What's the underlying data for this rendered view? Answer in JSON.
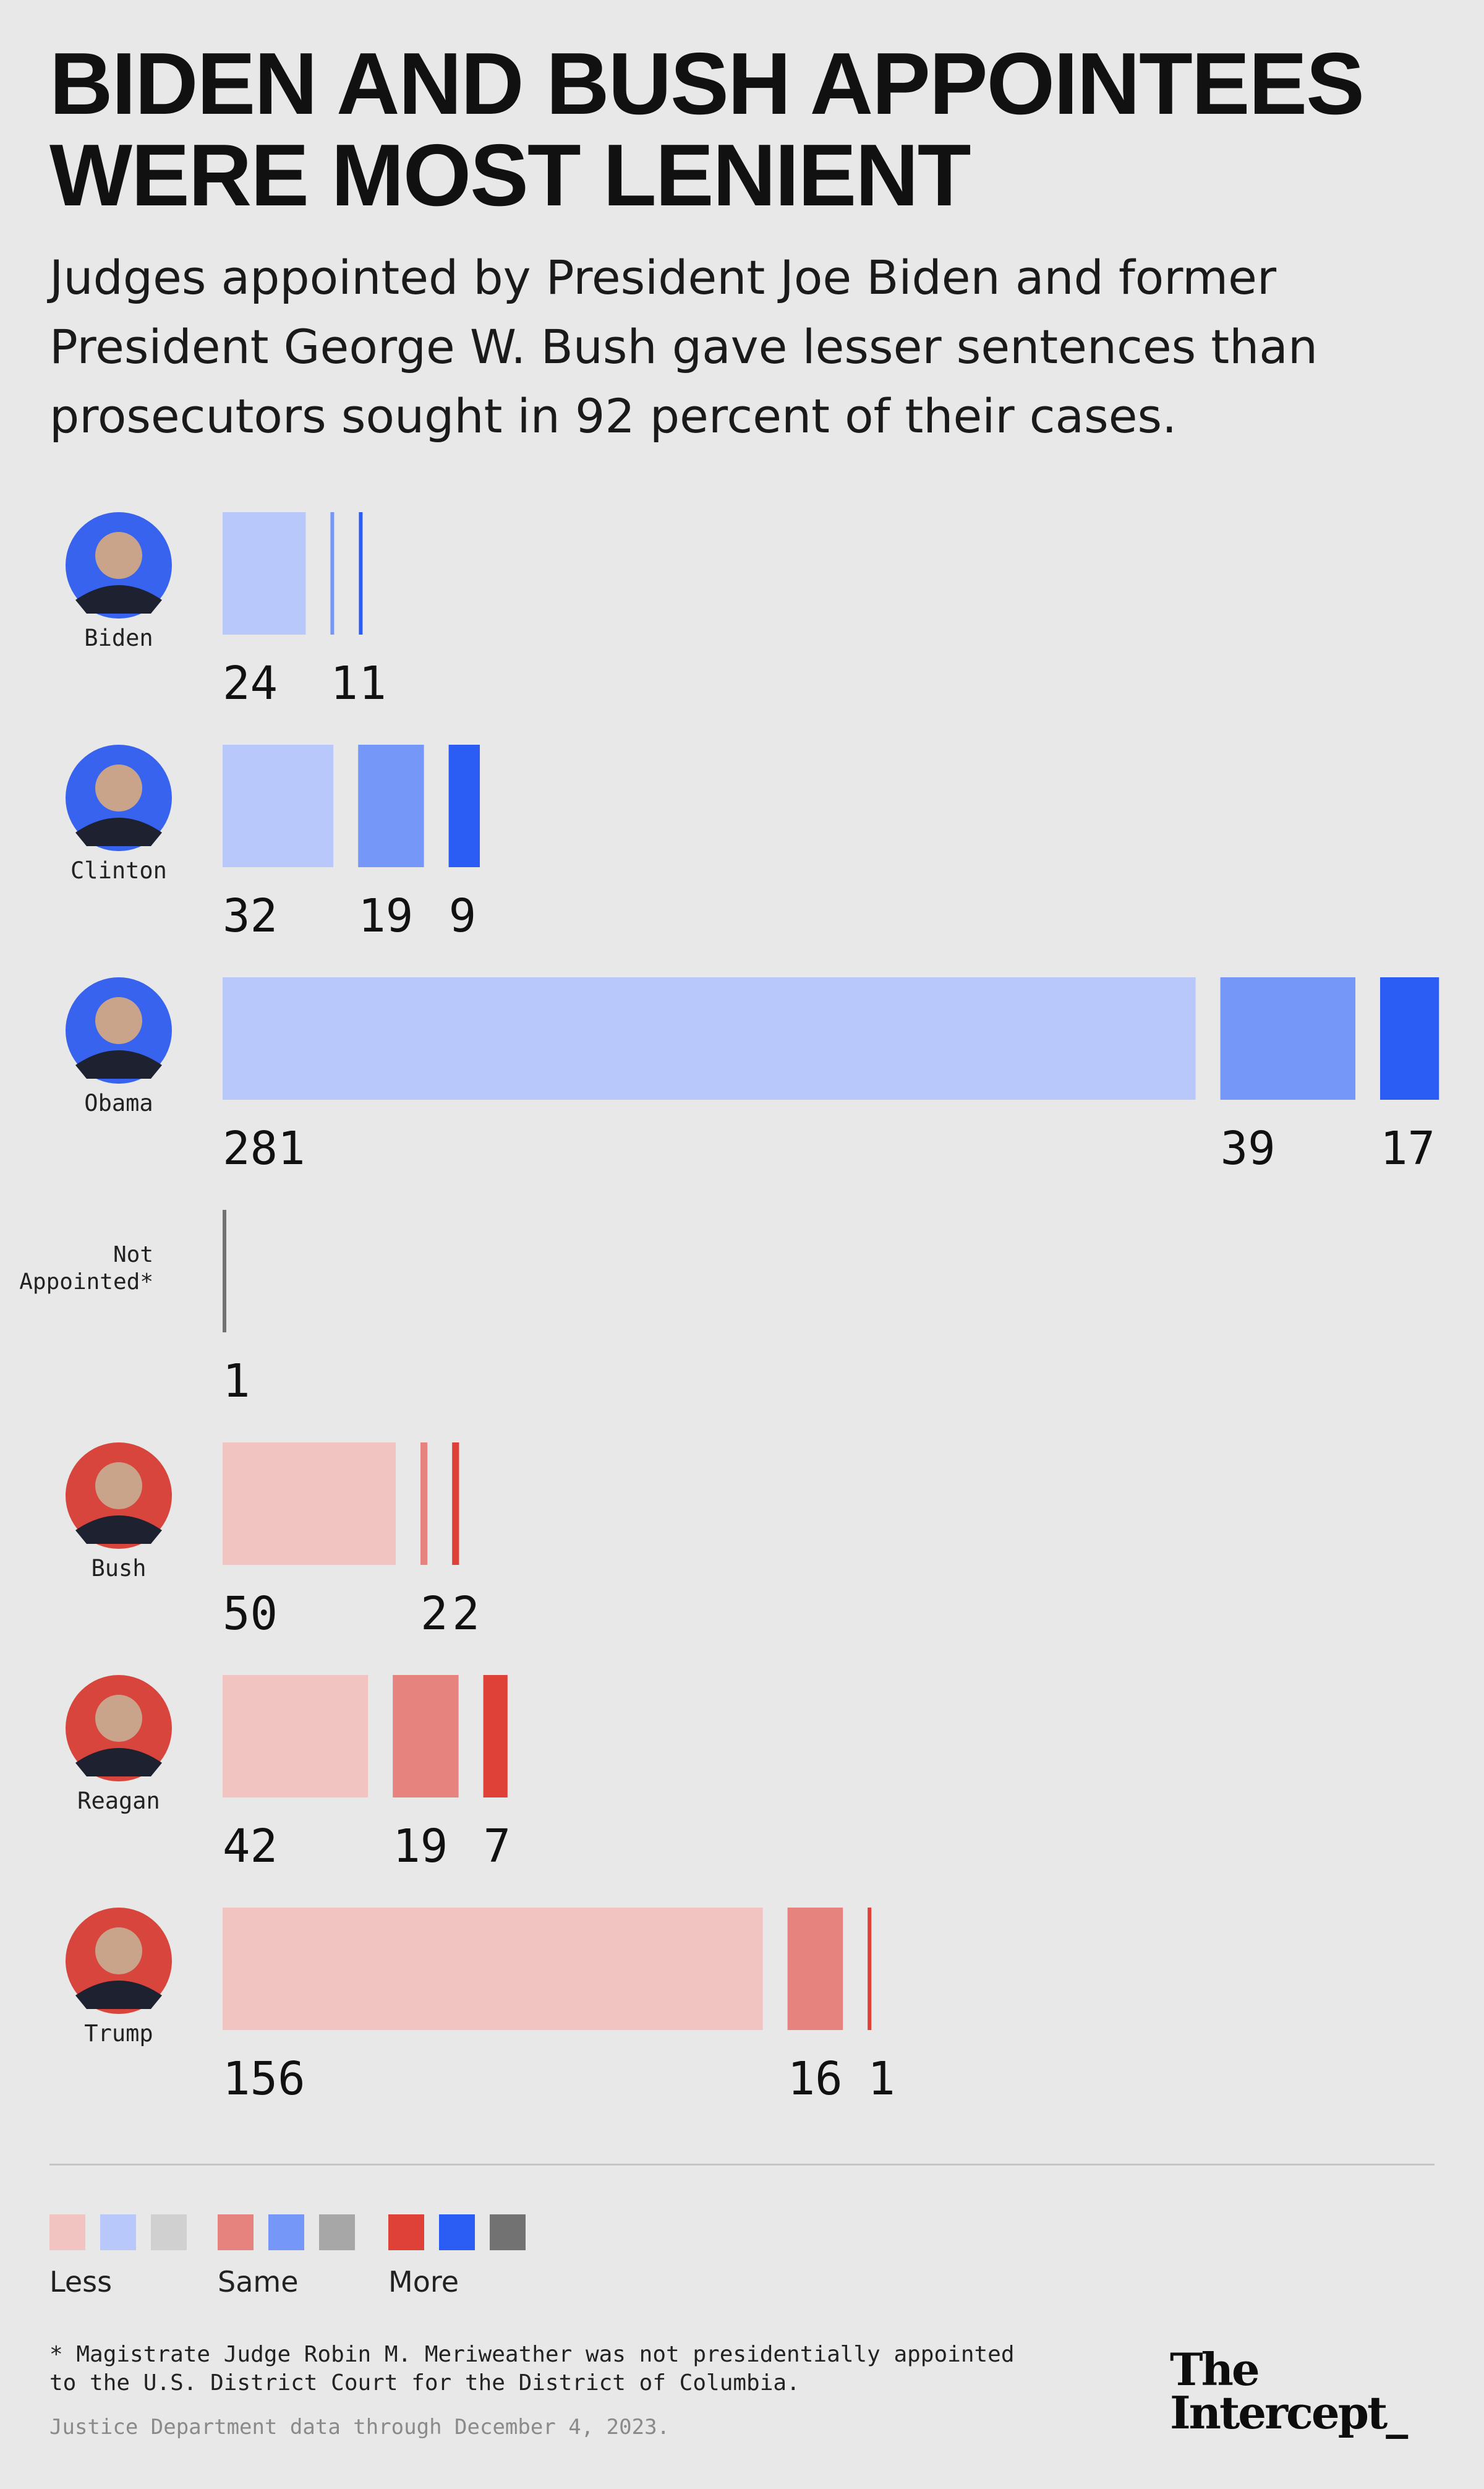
{
  "title": "BIDEN AND BUSH APPOINTEES\nWERE MOST LENIENT",
  "subtitle": "Judges appointed by President Joe Biden and former President George W. Bush gave lesser sentences than prosecutors sought in 92 percent of their cases.",
  "chart_data": {
    "type": "bar",
    "stacking": "grouped-horizontal",
    "categories_order": [
      "Less",
      "Same",
      "More"
    ],
    "rows": [
      {
        "name": "Biden",
        "party": "democrat",
        "values": [
          24,
          1,
          1
        ]
      },
      {
        "name": "Clinton",
        "party": "democrat",
        "values": [
          32,
          19,
          9
        ]
      },
      {
        "name": "Obama",
        "party": "democrat",
        "values": [
          281,
          39,
          17
        ]
      },
      {
        "name": "Not\nAppointed*",
        "party": "none",
        "values": [
          0,
          0,
          1
        ]
      },
      {
        "name": "Bush",
        "party": "republican",
        "values": [
          50,
          2,
          2
        ]
      },
      {
        "name": "Reagan",
        "party": "republican",
        "values": [
          42,
          19,
          7
        ]
      },
      {
        "name": "Trump",
        "party": "republican",
        "values": [
          156,
          16,
          1
        ]
      }
    ],
    "colors": {
      "democrat": [
        "#b8c8fb",
        "#7597f7",
        "#2b5df5"
      ],
      "republican": [
        "#f1c3c1",
        "#e6837e",
        "#df4037"
      ],
      "none": [
        "#d0d0d0",
        "#a7a7a7",
        "#727272"
      ]
    },
    "avatar_colors": {
      "democrat": "#3763ee",
      "republican": "#d8453d"
    }
  },
  "legend": {
    "items": [
      {
        "label": "Less",
        "colors": [
          "#f1c3c1",
          "#b8c8fb",
          "#d0d0d0"
        ]
      },
      {
        "label": "Same",
        "colors": [
          "#e6837e",
          "#7597f7",
          "#a7a7a7"
        ]
      },
      {
        "label": "More",
        "colors": [
          "#df4037",
          "#2b5df5",
          "#727272"
        ]
      }
    ]
  },
  "footnote": "* Magistrate Judge Robin M. Meriweather was not presidentially appointed\nto the U.S. District Court for the District of Columbia.",
  "source": "Justice Department data through December 4, 2023.",
  "brand": {
    "line1": "The",
    "line2": "Intercept_"
  }
}
